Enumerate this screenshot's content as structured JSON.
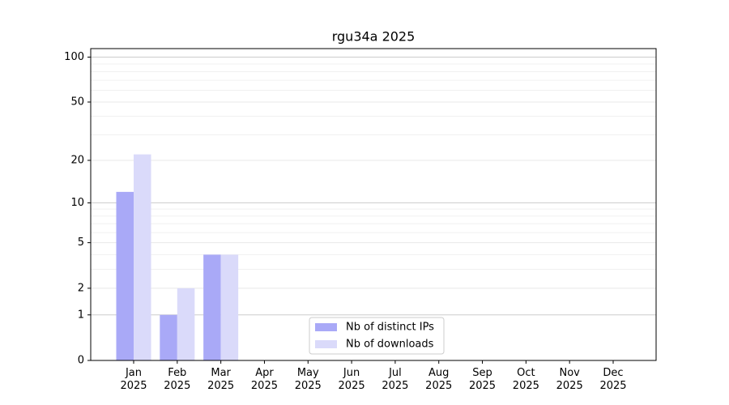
{
  "chart_data": {
    "type": "bar",
    "title": "rgu34a 2025",
    "categories": [
      "Jan\n2025",
      "Feb\n2025",
      "Mar\n2025",
      "Apr\n2025",
      "May\n2025",
      "Jun\n2025",
      "Jul\n2025",
      "Aug\n2025",
      "Sep\n2025",
      "Oct\n2025",
      "Nov\n2025",
      "Dec\n2025"
    ],
    "series": [
      {
        "name": "Nb of distinct IPs",
        "color": "#a9a9f7",
        "values": [
          12,
          1,
          4,
          0,
          0,
          0,
          0,
          0,
          0,
          0,
          0,
          0
        ]
      },
      {
        "name": "Nb of downloads",
        "color": "#dadafa",
        "values": [
          22,
          2,
          4,
          0,
          0,
          0,
          0,
          0,
          0,
          0,
          0,
          0
        ]
      }
    ],
    "yscale": "log1p",
    "ylim": [
      0,
      114
    ],
    "yticks": [
      0,
      1,
      2,
      5,
      10,
      20,
      50,
      100
    ],
    "minor_yticks": [
      3,
      4,
      6,
      7,
      8,
      9,
      30,
      40,
      60,
      70,
      80,
      90
    ],
    "grid": true,
    "legend": "lower center"
  }
}
